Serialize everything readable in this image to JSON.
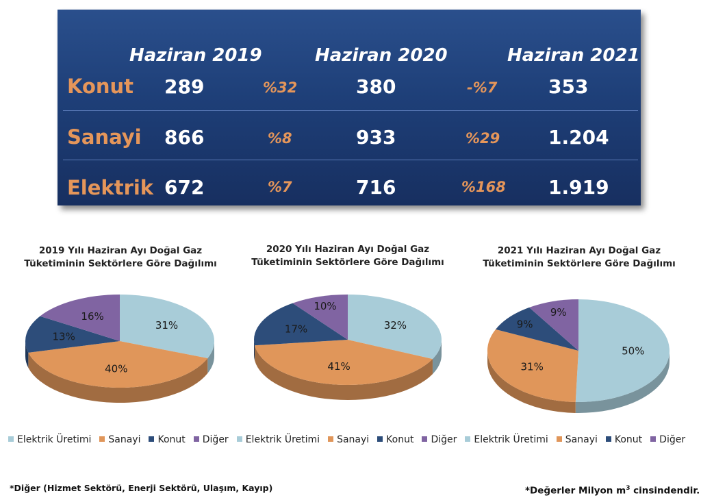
{
  "table": {
    "headers": [
      "Haziran 2019",
      "Haziran 2020",
      "Haziran 2021"
    ],
    "rows": [
      {
        "label": "Konut",
        "v2019": "289",
        "chg1": "%32",
        "v2020": "380",
        "chg2": "-%7",
        "v2021": "353"
      },
      {
        "label": "Sanayi",
        "v2019": "866",
        "chg1": "%8",
        "v2020": "933",
        "chg2": "%29",
        "v2021": "1.204"
      },
      {
        "label": "Elektrik",
        "v2019": "672",
        "chg1": "%7",
        "v2020": "716",
        "chg2": "%168",
        "v2021": "1.919"
      }
    ]
  },
  "chart_data": [
    {
      "type": "pie",
      "title_line1": "2019 Yılı Haziran Ayı Doğal Gaz",
      "title_line2": "Tüketiminin Sektörlere Göre Dağılımı",
      "slices": [
        {
          "name": "Elektrik Üretimi",
          "value": 31,
          "label": "31%"
        },
        {
          "name": "Sanayi",
          "value": 40,
          "label": "40%"
        },
        {
          "name": "Konut",
          "value": 13,
          "label": "13%"
        },
        {
          "name": "Diğer",
          "value": 16,
          "label": "16%"
        }
      ]
    },
    {
      "type": "pie",
      "title_line1": "2020 Yılı  Haziran Ayı Doğal Gaz",
      "title_line2": "Tüketiminin Sektörlere Göre Dağılımı",
      "slices": [
        {
          "name": "Elektrik Üretimi",
          "value": 32,
          "label": "32%"
        },
        {
          "name": "Sanayi",
          "value": 41,
          "label": "41%"
        },
        {
          "name": "Konut",
          "value": 17,
          "label": "17%"
        },
        {
          "name": "Diğer",
          "value": 10,
          "label": "10%"
        }
      ]
    },
    {
      "type": "pie",
      "title_line1": "2021 Yılı Haziran Ayı Doğal Gaz",
      "title_line2": "Tüketiminin Sektörlere Göre Dağılımı",
      "slices": [
        {
          "name": "Elektrik Üretimi",
          "value": 50,
          "label": "50%"
        },
        {
          "name": "Sanayi",
          "value": 31,
          "label": "31%"
        },
        {
          "name": "Konut",
          "value": 9,
          "label": "9%"
        },
        {
          "name": "Diğer",
          "value": 9,
          "label": "9%"
        }
      ]
    }
  ],
  "legend": [
    {
      "name": "Elektrik Üretimi",
      "color": "#a8ccd8"
    },
    {
      "name": "Sanayi",
      "color": "#e0965a"
    },
    {
      "name": "Konut",
      "color": "#2d4d7a"
    },
    {
      "name": "Diğer",
      "color": "#8064a2"
    }
  ],
  "colors": {
    "elektrik": "#a8ccd8",
    "sanayi": "#e0965a",
    "konut": "#2d4d7a",
    "diger": "#8064a2"
  },
  "footnotes": {
    "left": "*Diğer (Hizmet Sektörü, Enerji Sektörü, Ulaşım, Kayıp)",
    "right_prefix": "*Değerler Milyon m",
    "right_sup": "3",
    "right_suffix": " cinsindendir."
  }
}
